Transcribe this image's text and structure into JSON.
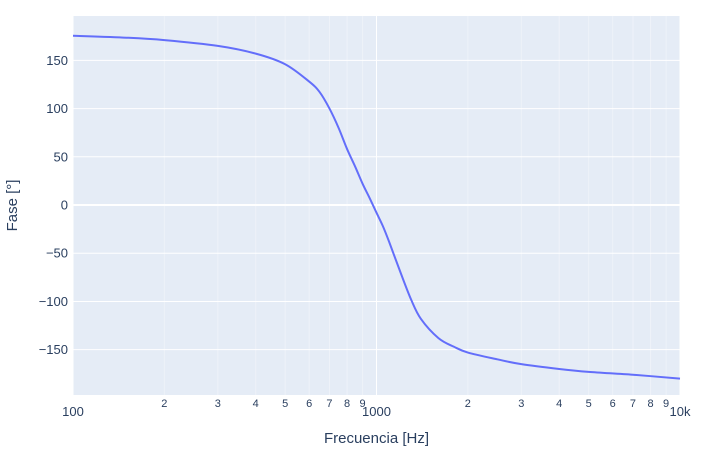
{
  "chart_data": {
    "type": "line",
    "title": "",
    "xlabel": "Frecuencia [Hz]",
    "ylabel": "Fase [°]",
    "x_scale": "log",
    "xlim": [
      100,
      10000
    ],
    "ylim": [
      -197,
      196
    ],
    "grid": true,
    "x_ticks_major": [
      {
        "value": 100,
        "label": "100"
      },
      {
        "value": 1000,
        "label": "1000"
      },
      {
        "value": 10000,
        "label": "10k"
      }
    ],
    "x_ticks_minor": [
      {
        "value": 200,
        "label": "2"
      },
      {
        "value": 300,
        "label": "3"
      },
      {
        "value": 400,
        "label": "4"
      },
      {
        "value": 500,
        "label": "5"
      },
      {
        "value": 600,
        "label": "6"
      },
      {
        "value": 700,
        "label": "7"
      },
      {
        "value": 800,
        "label": "8"
      },
      {
        "value": 900,
        "label": "9"
      },
      {
        "value": 2000,
        "label": "2"
      },
      {
        "value": 3000,
        "label": "3"
      },
      {
        "value": 4000,
        "label": "4"
      },
      {
        "value": 5000,
        "label": "5"
      },
      {
        "value": 6000,
        "label": "6"
      },
      {
        "value": 7000,
        "label": "7"
      },
      {
        "value": 8000,
        "label": "8"
      },
      {
        "value": 9000,
        "label": "9"
      }
    ],
    "y_ticks": [
      {
        "value": 150,
        "label": "150"
      },
      {
        "value": 100,
        "label": "100"
      },
      {
        "value": 50,
        "label": "50"
      },
      {
        "value": 0,
        "label": "0"
      },
      {
        "value": -50,
        "label": "−50"
      },
      {
        "value": -100,
        "label": "−100"
      },
      {
        "value": -150,
        "label": "−150"
      }
    ],
    "series": [
      {
        "color": "#636efa",
        "x": [
          100,
          150,
          200,
          300,
          400,
          500,
          600,
          650,
          700,
          750,
          800,
          850,
          900,
          950,
          1000,
          1050,
          1100,
          1200,
          1300,
          1400,
          1600,
          1800,
          2000,
          2500,
          3000,
          4000,
          5000,
          7000,
          10000
        ],
        "y": [
          175.5,
          173.5,
          171,
          165,
          157,
          146,
          128,
          117,
          100,
          80,
          58,
          40,
          22,
          7,
          -8,
          -22,
          -38,
          -70,
          -98,
          -118,
          -138,
          -147,
          -153,
          -160,
          -165,
          -170,
          -173,
          -176,
          -180
        ]
      }
    ]
  }
}
